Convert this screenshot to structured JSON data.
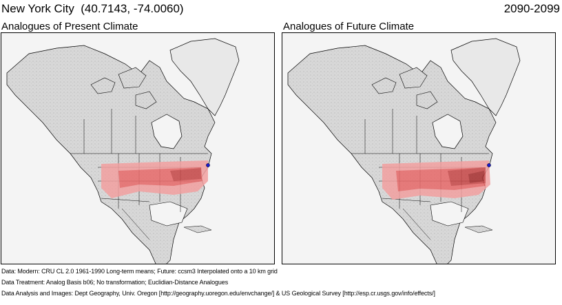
{
  "header": {
    "location_title": "New York City  (40.7143, -74.0060)",
    "period": "2090-2099"
  },
  "panels": [
    {
      "label": "Analogues of Present Climate"
    },
    {
      "label": "Analogues of Future Climate"
    }
  ],
  "footer": {
    "data_line": "Data:  Modern: CRU CL 2.0 1961-1990 Long-term means; Future: ccsm3 Interpolated onto a 10 km grid",
    "treatment_line": "Data Treatment:  Analog Basis b06; No transformation; Euclidian-Distance Analogues",
    "analysis_line": "Data Analysis and Images:  Dept Geography, Univ. Oregon [http://geography.uoregon.edu/envchange/] & US Geological Survey [http://esp.cr.usgs.gov/info/effects/]"
  },
  "colors": {
    "land": "#d9d9d9",
    "water": "#f4f4f4",
    "borders": "#000000",
    "analog_light": "#f2a0a0",
    "analog_mid": "#e86a6a",
    "analog_dark": "#c84848",
    "target_marker": "#1a1acc"
  },
  "icons": {
    "target": "target-location-marker"
  }
}
